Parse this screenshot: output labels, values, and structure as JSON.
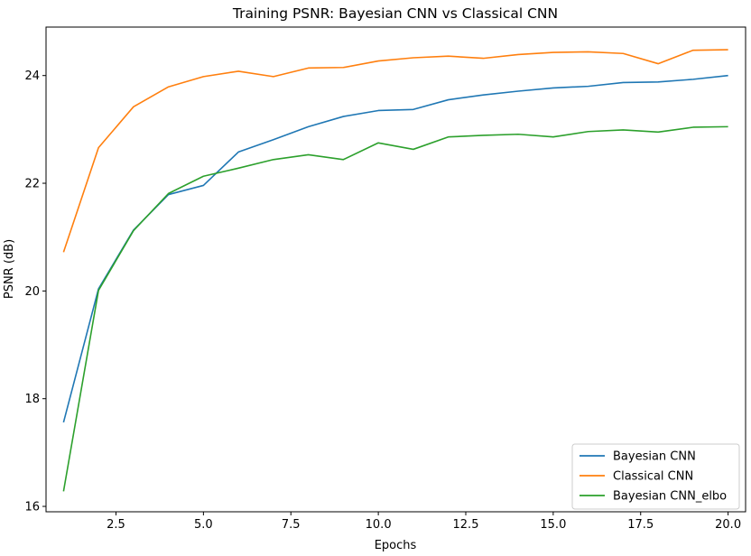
{
  "chart_data": {
    "type": "line",
    "title": "Training PSNR: Bayesian CNN vs Classical CNN",
    "xlabel": "Epochs",
    "ylabel": "PSNR (dB)",
    "xlim": [
      0.5,
      20.5
    ],
    "ylim": [
      15.9,
      24.9
    ],
    "xticks": [
      2.5,
      5.0,
      7.5,
      10.0,
      12.5,
      15.0,
      17.5,
      20.0
    ],
    "xtick_labels": [
      "2.5",
      "5.0",
      "7.5",
      "10.0",
      "12.5",
      "15.0",
      "17.5",
      "20.0"
    ],
    "yticks": [
      16,
      18,
      20,
      22,
      24
    ],
    "ytick_labels": [
      "16",
      "18",
      "20",
      "22",
      "24"
    ],
    "grid": false,
    "legend_position": "lower-right",
    "x": [
      1,
      2,
      3,
      4,
      5,
      6,
      7,
      8,
      9,
      10,
      11,
      12,
      13,
      14,
      15,
      16,
      17,
      18,
      19,
      20
    ],
    "series": [
      {
        "name": "Bayesian CNN",
        "color": "#1f77b4",
        "values": [
          17.56,
          20.04,
          21.13,
          21.79,
          21.96,
          22.58,
          22.81,
          23.05,
          23.24,
          23.35,
          23.37,
          23.55,
          23.64,
          23.71,
          23.77,
          23.8,
          23.87,
          23.88,
          23.93,
          24.0
        ]
      },
      {
        "name": "Classical CNN",
        "color": "#ff7f0e",
        "values": [
          20.72,
          22.66,
          23.42,
          23.79,
          23.98,
          24.08,
          23.98,
          24.14,
          24.15,
          24.27,
          24.33,
          24.36,
          24.32,
          24.39,
          24.43,
          24.44,
          24.41,
          24.22,
          24.47,
          24.48
        ]
      },
      {
        "name": "Bayesian CNN_elbo",
        "color": "#2ca02c",
        "values": [
          16.28,
          20.01,
          21.12,
          21.81,
          22.13,
          22.28,
          22.44,
          22.53,
          22.44,
          22.75,
          22.63,
          22.86,
          22.89,
          22.91,
          22.86,
          22.96,
          22.99,
          22.95,
          23.04,
          23.05
        ]
      }
    ]
  }
}
